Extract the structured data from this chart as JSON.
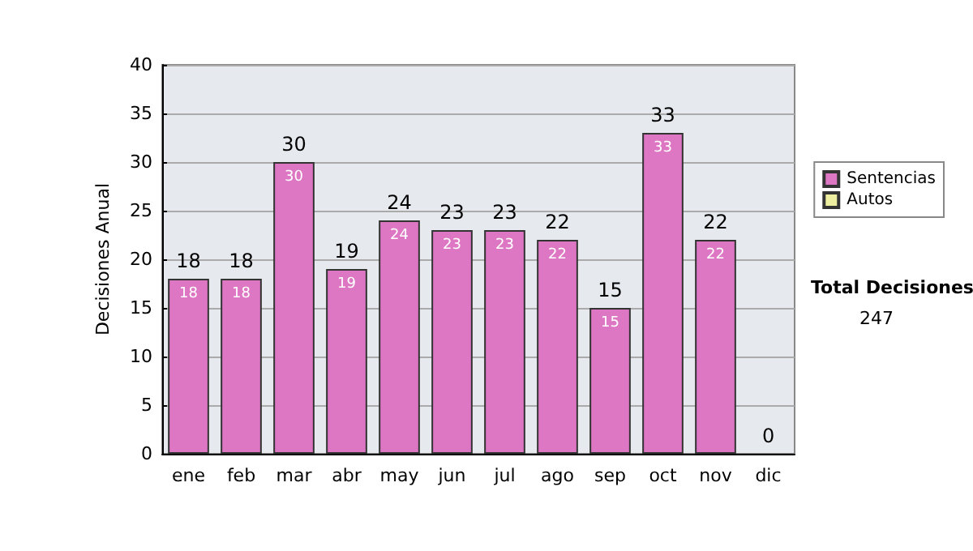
{
  "chart_data": {
    "type": "bar",
    "ylabel": "Decisiones Anual",
    "categories": [
      "ene",
      "feb",
      "mar",
      "abr",
      "may",
      "jun",
      "jul",
      "ago",
      "sep",
      "oct",
      "nov",
      "dic"
    ],
    "series": [
      {
        "name": "Sentencias",
        "color": "#dd77c4",
        "values": [
          18,
          18,
          30,
          19,
          24,
          23,
          23,
          22,
          15,
          33,
          22,
          0
        ],
        "value_labels": [
          "18",
          "18",
          "30",
          "19",
          "24",
          "23",
          "23",
          "22",
          "15",
          "33",
          "22",
          null
        ]
      },
      {
        "name": "Autos",
        "color": "#eeeea0",
        "values": [
          0,
          0,
          0,
          0,
          0,
          0,
          0,
          0,
          0,
          0,
          0,
          0
        ]
      }
    ],
    "stacked": true,
    "totals": [
      "18",
      "18",
      "30",
      "19",
      "24",
      "23",
      "23",
      "22",
      "15",
      "33",
      "22",
      "0"
    ],
    "ylim": [
      0,
      40
    ],
    "yticks": [
      0,
      5,
      10,
      15,
      20,
      25,
      30,
      35,
      40
    ],
    "grid": "y",
    "legend": "right",
    "annotations": [
      "Total Decisiones",
      "247"
    ]
  }
}
